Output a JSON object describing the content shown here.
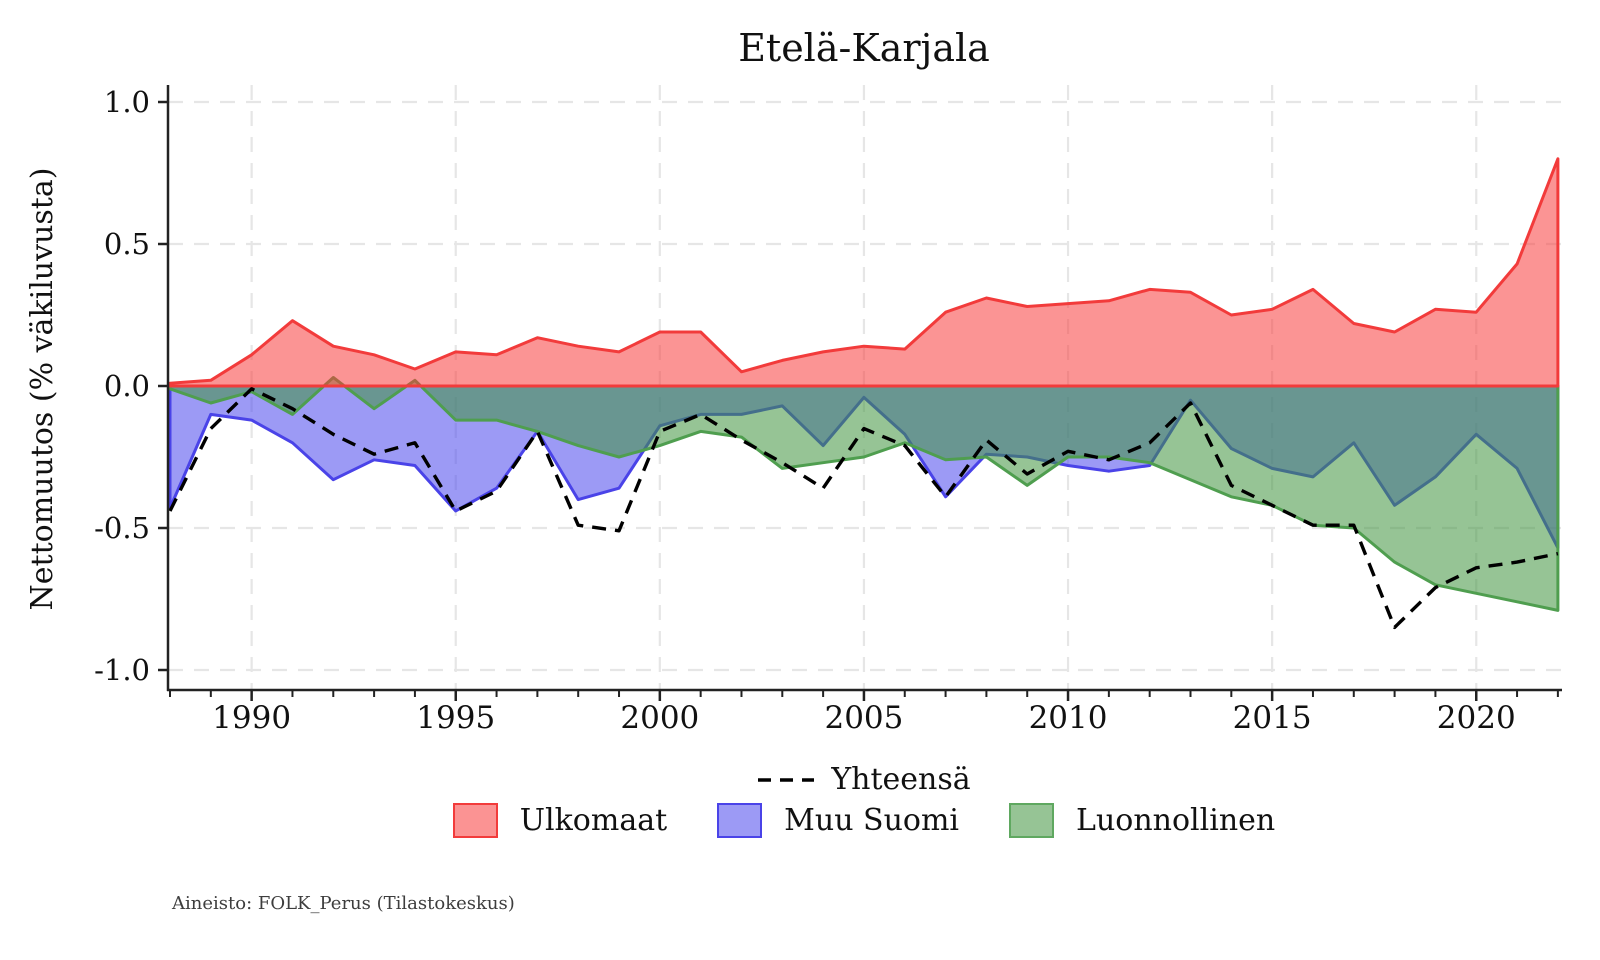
{
  "title": "Etelä-Karjala",
  "y_axis": {
    "label": "Nettomuutos (% väkiluvusta)",
    "tick_labels": [
      "1.0",
      "0.5",
      "0.0",
      "-0.5",
      "-1.0"
    ],
    "tick_values": [
      1.0,
      0.5,
      0.0,
      -0.5,
      -1.0
    ]
  },
  "x_axis": {
    "tick_labels": [
      "1990",
      "1995",
      "2000",
      "2005",
      "2010",
      "2015",
      "2020"
    ],
    "tick_values": [
      1990,
      1995,
      2000,
      2005,
      2010,
      2015,
      2020
    ],
    "minor_tick_step_years": 1
  },
  "legend": {
    "items": [
      {
        "label": "Yhteensä",
        "style": "dashed-line",
        "color": "#000000"
      },
      {
        "label": "Ulkomaat",
        "style": "patch",
        "fill": "#fb9393",
        "border": "#f23b3b"
      },
      {
        "label": "Muu Suomi",
        "style": "patch",
        "fill": "#9c9af5",
        "border": "#4a43e8"
      },
      {
        "label": "Luonnollinen",
        "style": "patch",
        "fill": "#96c495",
        "border": "#5fa860"
      }
    ]
  },
  "footnote": "Aineisto: FOLK_Perus (Tilastokeskus)",
  "chart_data": {
    "type": "area",
    "title": "Etelä-Karjala",
    "ylabel": "Nettomuutos (% väkiluvusta)",
    "grid": true,
    "legend_position": "bottom",
    "xlim": [
      1987.9,
      2022.1
    ],
    "ylim": [
      -1.07,
      1.06
    ],
    "x": [
      1988,
      1989,
      1990,
      1991,
      1992,
      1993,
      1994,
      1995,
      1996,
      1997,
      1998,
      1999,
      2000,
      2001,
      2002,
      2003,
      2004,
      2005,
      2006,
      2007,
      2008,
      2009,
      2010,
      2011,
      2012,
      2013,
      2014,
      2015,
      2016,
      2017,
      2018,
      2019,
      2020,
      2021,
      2022
    ],
    "series": [
      {
        "name": "Ulkomaat",
        "type": "area",
        "stroke": "#f23b3b",
        "fill": "rgb(248,60,60)",
        "fill_opacity": 0.55,
        "values": [
          0.01,
          0.02,
          0.11,
          0.23,
          0.14,
          0.11,
          0.06,
          0.12,
          0.11,
          0.17,
          0.14,
          0.12,
          0.19,
          0.19,
          0.05,
          0.09,
          0.12,
          0.14,
          0.13,
          0.26,
          0.31,
          0.28,
          0.29,
          0.3,
          0.34,
          0.33,
          0.25,
          0.27,
          0.34,
          0.22,
          0.19,
          0.27,
          0.26,
          0.43,
          0.8
        ]
      },
      {
        "name": "Muu Suomi",
        "type": "area",
        "stroke": "#4a43e8",
        "fill": "rgb(75,71,237)",
        "fill_opacity": 0.55,
        "values": [
          -0.43,
          -0.1,
          -0.12,
          -0.2,
          -0.33,
          -0.26,
          -0.28,
          -0.44,
          -0.36,
          -0.16,
          -0.4,
          -0.36,
          -0.14,
          -0.1,
          -0.1,
          -0.07,
          -0.21,
          -0.04,
          -0.17,
          -0.39,
          -0.24,
          -0.25,
          -0.28,
          -0.3,
          -0.28,
          -0.05,
          -0.22,
          -0.29,
          -0.32,
          -0.2,
          -0.42,
          -0.32,
          -0.17,
          -0.29,
          -0.57
        ]
      },
      {
        "name": "Luonnollinen",
        "type": "area",
        "stroke": "#4f9e4f",
        "fill": "rgb(64,148,62)",
        "fill_opacity": 0.55,
        "values": [
          -0.01,
          -0.06,
          -0.02,
          -0.1,
          0.03,
          -0.08,
          0.02,
          -0.12,
          -0.12,
          -0.16,
          -0.21,
          -0.25,
          -0.21,
          -0.16,
          -0.18,
          -0.29,
          -0.27,
          -0.25,
          -0.2,
          -0.26,
          -0.25,
          -0.35,
          -0.25,
          -0.25,
          -0.27,
          -0.33,
          -0.39,
          -0.42,
          -0.49,
          -0.5,
          -0.62,
          -0.7,
          -0.73,
          -0.76,
          -0.79
        ]
      },
      {
        "name": "Yhteensä",
        "type": "dashed_line",
        "stroke": "#000000",
        "values": [
          -0.44,
          -0.15,
          -0.01,
          -0.08,
          -0.17,
          -0.24,
          -0.2,
          -0.44,
          -0.37,
          -0.16,
          -0.49,
          -0.51,
          -0.16,
          -0.1,
          -0.19,
          -0.27,
          -0.36,
          -0.15,
          -0.21,
          -0.39,
          -0.19,
          -0.31,
          -0.23,
          -0.26,
          -0.2,
          -0.06,
          -0.35,
          -0.42,
          -0.49,
          -0.49,
          -0.85,
          -0.71,
          -0.64,
          -0.62,
          -0.59
        ]
      }
    ]
  }
}
